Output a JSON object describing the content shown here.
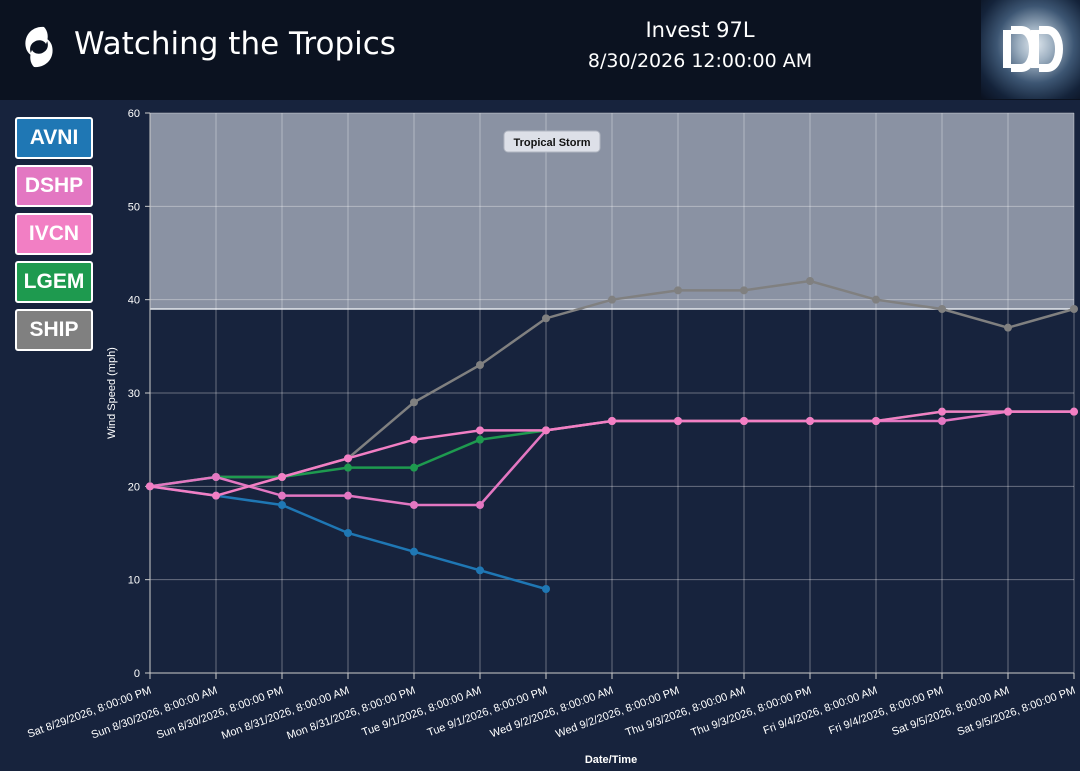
{
  "header": {
    "app_title": "Watching the Tropics",
    "storm_name": "Invest 97L",
    "timestamp": "8/30/2026 12:00:00 AM",
    "brand_icon": "hurricane-icon",
    "logo_icon": "dd-logo"
  },
  "legend": [
    {
      "label": "AVNI",
      "color": "#1f77b4"
    },
    {
      "label": "DSHP",
      "color": "#e377c2"
    },
    {
      "label": "IVCN",
      "color": "#f27fc4"
    },
    {
      "label": "LGEM",
      "color": "#1e9a4f"
    },
    {
      "label": "SHIP",
      "color": "#808080"
    }
  ],
  "chart_data": {
    "type": "line",
    "xlabel": "Date/Time",
    "ylabel": "Wind Speed (mph)",
    "ylim": [
      0,
      60
    ],
    "yticks": [
      0,
      10,
      20,
      30,
      40,
      50,
      60
    ],
    "grid": true,
    "categories": [
      "Sat 8/29/2026, 8:00:00 PM",
      "Sun 8/30/2026, 8:00:00 AM",
      "Sun 8/30/2026, 8:00:00 PM",
      "Mon 8/31/2026, 8:00:00 AM",
      "Mon 8/31/2026, 8:00:00 PM",
      "Tue 9/1/2026, 8:00:00 AM",
      "Tue 9/1/2026, 8:00:00 PM",
      "Wed 9/2/2026, 8:00:00 AM",
      "Wed 9/2/2026, 8:00:00 PM",
      "Thu 9/3/2026, 8:00:00 AM",
      "Thu 9/3/2026, 8:00:00 PM",
      "Fri 9/4/2026, 8:00:00 AM",
      "Fri 9/4/2026, 8:00:00 PM",
      "Sat 9/5/2026, 8:00:00 AM",
      "Sat 9/5/2026, 8:00:00 PM"
    ],
    "threshold": {
      "label": "Tropical Storm",
      "from": 39,
      "to": 60
    },
    "series": [
      {
        "name": "SHIP",
        "color": "#808080",
        "values": [
          20,
          21,
          21,
          23,
          29,
          33,
          38,
          40,
          41,
          41,
          42,
          40,
          39,
          37,
          39
        ]
      },
      {
        "name": "AVNI",
        "color": "#1f77b4",
        "values": [
          20,
          19,
          18,
          15,
          13,
          11,
          9,
          null,
          null,
          null,
          null,
          null,
          null,
          null,
          null
        ]
      },
      {
        "name": "LGEM",
        "color": "#1e9a4f",
        "values": [
          20,
          21,
          21,
          22,
          22,
          25,
          26,
          27,
          27,
          27,
          27,
          27,
          28,
          28,
          28
        ]
      },
      {
        "name": "DSHP",
        "color": "#e377c2",
        "values": [
          20,
          21,
          19,
          19,
          18,
          18,
          26,
          27,
          27,
          27,
          27,
          27,
          27,
          28,
          28
        ]
      },
      {
        "name": "IVCN",
        "color": "#f27fc4",
        "values": [
          20,
          19,
          21,
          23,
          25,
          26,
          26,
          27,
          27,
          27,
          27,
          27,
          28,
          28,
          28
        ]
      }
    ]
  }
}
